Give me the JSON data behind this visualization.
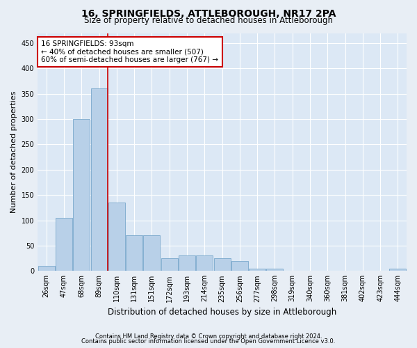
{
  "title1": "16, SPRINGFIELDS, ATTLEBOROUGH, NR17 2PA",
  "title2": "Size of property relative to detached houses in Attleborough",
  "xlabel": "Distribution of detached houses by size in Attleborough",
  "ylabel": "Number of detached properties",
  "footer1": "Contains HM Land Registry data © Crown copyright and database right 2024.",
  "footer2": "Contains public sector information licensed under the Open Government Licence v3.0.",
  "categories": [
    "26sqm",
    "47sqm",
    "68sqm",
    "89sqm",
    "110sqm",
    "131sqm",
    "151sqm",
    "172sqm",
    "193sqm",
    "214sqm",
    "235sqm",
    "256sqm",
    "277sqm",
    "298sqm",
    "319sqm",
    "340sqm",
    "360sqm",
    "381sqm",
    "402sqm",
    "423sqm",
    "444sqm"
  ],
  "values": [
    10,
    105,
    300,
    360,
    135,
    70,
    70,
    25,
    30,
    30,
    25,
    20,
    5,
    5,
    0,
    0,
    0,
    0,
    0,
    0,
    5
  ],
  "bar_color": "#b8d0e8",
  "bar_edge_color": "#7aa8cc",
  "vline_pos": 3.5,
  "vline_color": "#cc0000",
  "annotation_text": "16 SPRINGFIELDS: 93sqm\n← 40% of detached houses are smaller (507)\n60% of semi-detached houses are larger (767) →",
  "annotation_box_color": "white",
  "annotation_box_edge": "#cc0000",
  "ylim": [
    0,
    470
  ],
  "yticks": [
    0,
    50,
    100,
    150,
    200,
    250,
    300,
    350,
    400,
    450
  ],
  "background_color": "#e8eef5",
  "plot_background": "#dce8f5",
  "title1_fontsize": 10,
  "title2_fontsize": 8.5,
  "xlabel_fontsize": 8.5,
  "ylabel_fontsize": 8,
  "tick_fontsize": 7,
  "footer_fontsize": 6
}
